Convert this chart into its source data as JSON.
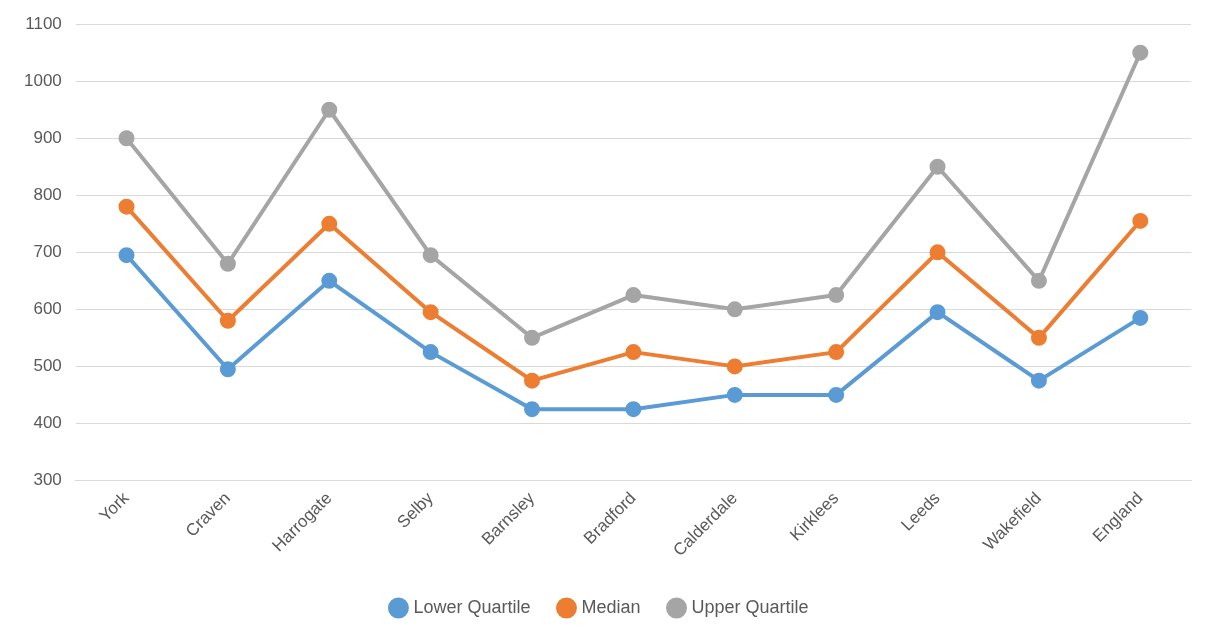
{
  "chart_data": {
    "type": "line",
    "categories": [
      "York",
      "Craven",
      "Harrogate",
      "Selby",
      "Barnsley",
      "Bradford",
      "Calderdale",
      "Kirklees",
      "Leeds",
      "Wakefield",
      "England"
    ],
    "series": [
      {
        "name": "Lower Quartile",
        "color": "#5b9bd5",
        "values": [
          695,
          495,
          650,
          525,
          425,
          425,
          450,
          450,
          595,
          475,
          585
        ]
      },
      {
        "name": "Median",
        "color": "#ed7d31",
        "values": [
          780,
          580,
          750,
          595,
          475,
          525,
          500,
          525,
          700,
          550,
          755
        ]
      },
      {
        "name": "Upper Quartile",
        "color": "#a5a5a5",
        "values": [
          900,
          680,
          950,
          695,
          550,
          625,
          600,
          625,
          850,
          650,
          1050
        ]
      }
    ],
    "ylim": [
      300,
      1100
    ],
    "yticks": [
      300,
      400,
      500,
      600,
      700,
      800,
      900,
      1000,
      1100
    ],
    "grid": "y",
    "legend": "bottom",
    "marker": "circle",
    "line_style": "solid"
  }
}
